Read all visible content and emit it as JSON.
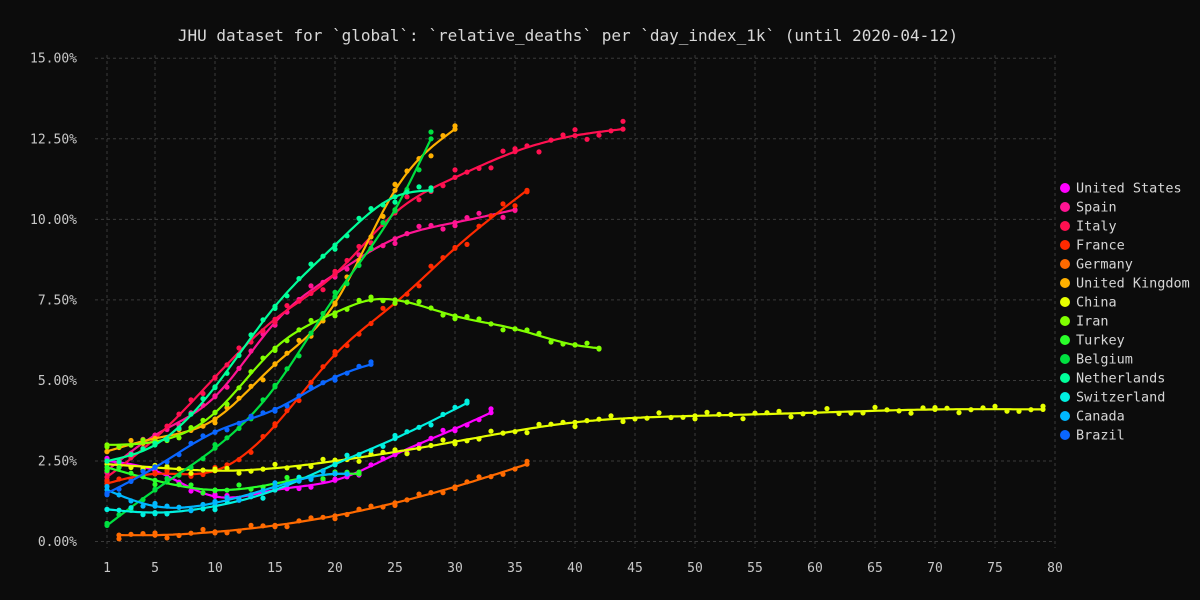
{
  "chart_data": {
    "type": "scatter",
    "title": "JHU dataset for `global`: `relative_deaths` per `day_index_1k` (until 2020-04-12)",
    "xlabel": "",
    "ylabel": "",
    "xlim": [
      0,
      80
    ],
    "ylim": [
      -0.002,
      0.151
    ],
    "x_ticks": [
      1,
      5,
      10,
      15,
      20,
      25,
      30,
      35,
      40,
      45,
      50,
      55,
      60,
      65,
      70,
      75,
      80
    ],
    "x_tick_labels": [
      "1",
      "5",
      "10",
      "15",
      "20",
      "25",
      "30",
      "35",
      "40",
      "45",
      "50",
      "55",
      "60",
      "65",
      "70",
      "75",
      "80"
    ],
    "y_ticks": [
      0,
      0.025,
      0.05,
      0.075,
      0.1,
      0.125,
      0.15
    ],
    "y_tick_labels": [
      "0.00%",
      "2.50%",
      "5.00%",
      "7.50%",
      "10.00%",
      "12.50%",
      "15.00%"
    ],
    "grid": true,
    "legend_position": "right",
    "series": [
      {
        "name": "United States",
        "color": "#ff00ff",
        "x": [
          1,
          5,
          10,
          15,
          20,
          25,
          30,
          33
        ],
        "y": [
          0.025,
          0.022,
          0.014,
          0.016,
          0.019,
          0.027,
          0.035,
          0.04
        ]
      },
      {
        "name": "Spain",
        "color": "#ff1493",
        "x": [
          1,
          5,
          10,
          15,
          20,
          25,
          30,
          35
        ],
        "y": [
          0.022,
          0.033,
          0.045,
          0.068,
          0.083,
          0.094,
          0.099,
          0.103
        ]
      },
      {
        "name": "Italy",
        "color": "#ff1050",
        "x": [
          1,
          5,
          10,
          15,
          20,
          25,
          30,
          35,
          40,
          44
        ],
        "y": [
          0.02,
          0.032,
          0.051,
          0.069,
          0.083,
          0.102,
          0.113,
          0.121,
          0.126,
          0.128
        ]
      },
      {
        "name": "France",
        "color": "#ff2a00",
        "x": [
          1,
          5,
          10,
          15,
          20,
          25,
          30,
          36
        ],
        "y": [
          0.018,
          0.021,
          0.022,
          0.036,
          0.058,
          0.074,
          0.091,
          0.109
        ]
      },
      {
        "name": "Germany",
        "color": "#ff6a00",
        "x": [
          2,
          5,
          10,
          15,
          20,
          25,
          30,
          36
        ],
        "y": [
          0.002,
          0.002,
          0.003,
          0.005,
          0.008,
          0.012,
          0.017,
          0.024
        ]
      },
      {
        "name": "United Kingdom",
        "color": "#ffb000",
        "x": [
          1,
          5,
          10,
          15,
          20,
          25,
          30
        ],
        "y": [
          0.028,
          0.032,
          0.038,
          0.055,
          0.074,
          0.109,
          0.128
        ]
      },
      {
        "name": "China",
        "color": "#e6ff00",
        "x": [
          1,
          5,
          10,
          20,
          30,
          40,
          50,
          60,
          70,
          79
        ],
        "y": [
          0.024,
          0.023,
          0.022,
          0.025,
          0.031,
          0.037,
          0.039,
          0.04,
          0.041,
          0.041
        ]
      },
      {
        "name": "Iran",
        "color": "#80ff00",
        "x": [
          1,
          5,
          10,
          15,
          20,
          23,
          25,
          30,
          35,
          40,
          42
        ],
        "y": [
          0.03,
          0.031,
          0.04,
          0.06,
          0.071,
          0.075,
          0.075,
          0.07,
          0.066,
          0.061,
          0.06
        ]
      },
      {
        "name": "Turkey",
        "color": "#2aff2a",
        "x": [
          1,
          5,
          10,
          15,
          20,
          22
        ],
        "y": [
          0.023,
          0.019,
          0.016,
          0.018,
          0.021,
          0.021
        ]
      },
      {
        "name": "Belgium",
        "color": "#00e040",
        "x": [
          1,
          5,
          10,
          15,
          20,
          25,
          28
        ],
        "y": [
          0.005,
          0.016,
          0.029,
          0.048,
          0.076,
          0.103,
          0.125
        ]
      },
      {
        "name": "Netherlands",
        "color": "#00ff9a",
        "x": [
          1,
          5,
          10,
          15,
          20,
          25,
          28
        ],
        "y": [
          0.025,
          0.03,
          0.048,
          0.073,
          0.092,
          0.107,
          0.109
        ]
      },
      {
        "name": "Switzerland",
        "color": "#00f0e0",
        "x": [
          1,
          5,
          10,
          15,
          20,
          25,
          31
        ],
        "y": [
          0.01,
          0.009,
          0.011,
          0.016,
          0.024,
          0.032,
          0.043
        ]
      },
      {
        "name": "Canada",
        "color": "#00b8ff",
        "x": [
          1,
          5,
          10,
          15,
          20,
          21
        ],
        "y": [
          0.016,
          0.011,
          0.012,
          0.017,
          0.021,
          0.021
        ]
      },
      {
        "name": "Brazil",
        "color": "#0a66ff",
        "x": [
          1,
          5,
          10,
          15,
          20,
          23
        ],
        "y": [
          0.015,
          0.023,
          0.034,
          0.041,
          0.051,
          0.055
        ]
      }
    ]
  }
}
